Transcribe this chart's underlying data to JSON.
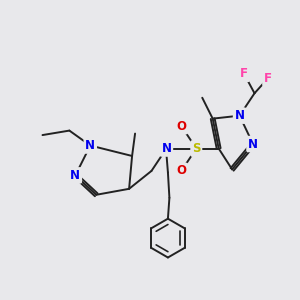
{
  "bg_color": "#e8e8eb",
  "bond_color": "#222222",
  "bond_width": 1.4,
  "atom_colors": {
    "N": "#0000ee",
    "O": "#dd0000",
    "S": "#bbbb00",
    "F": "#ff44aa",
    "C": "#222222"
  },
  "font_size": 8.5
}
